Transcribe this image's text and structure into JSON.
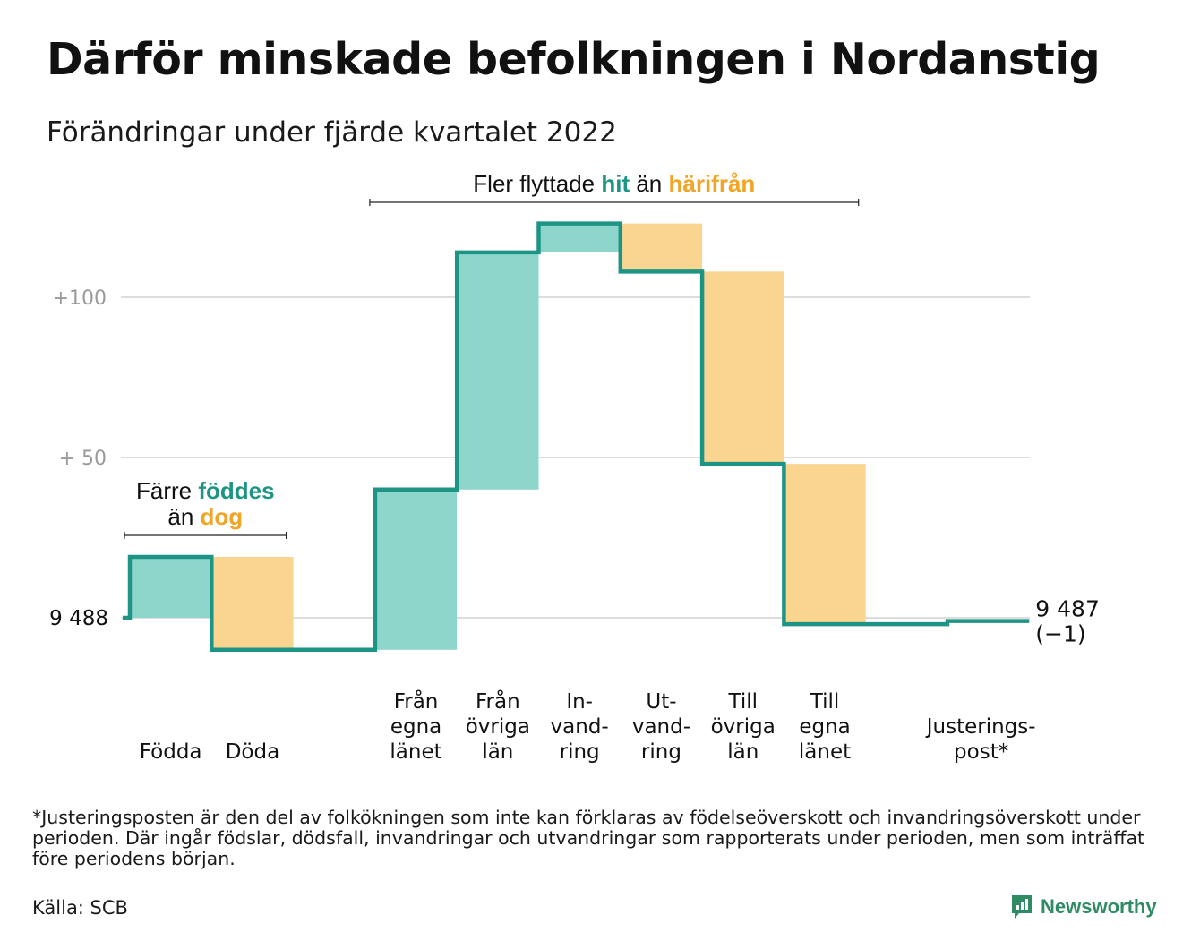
{
  "title": "Därför minskade befolkningen i Nordanstig",
  "subtitle": "Förändringar under fjärde kvartalet 2022",
  "footnote": "*Justeringsposten är den del av folkökningen som inte kan förklaras av födelseöverskott och invandringsöverskott under perioden. Där ingår födslar, dödsfall, invandringar och utvandringar som rapporterats under perioden, men som inträffat före periodens början.",
  "source": "Källa: SCB",
  "brand": "Newsworthy",
  "colors": {
    "increase": "#8ed6cc",
    "decrease": "#fad590",
    "line": "#1e9485",
    "accent_text": "#1e9485",
    "orange_text": "#f2a425",
    "grid": "#dddddd",
    "tick": "#9a9a9a"
  },
  "chart_data": {
    "type": "waterfall",
    "baseline_label": "9 488",
    "end_label": [
      "9 487",
      "(−1)"
    ],
    "y_ticks": [
      {
        "value": 100,
        "label": "+100"
      },
      {
        "value": 50,
        "label": "+ 50"
      }
    ],
    "ylim": [
      -13,
      125
    ],
    "steps": [
      {
        "category": [
          "Födda"
        ],
        "start": 0,
        "end": 19
      },
      {
        "category": [
          "Döda"
        ],
        "start": 19,
        "end": -10
      },
      {
        "category": [],
        "start": -10,
        "end": -10
      },
      {
        "category": [
          "Från",
          "egna",
          "länet"
        ],
        "start": -10,
        "end": 40
      },
      {
        "category": [
          "Från",
          "övriga",
          "län"
        ],
        "start": 40,
        "end": 114
      },
      {
        "category": [
          "In-",
          "vand-",
          "ring"
        ],
        "start": 114,
        "end": 123
      },
      {
        "category": [
          "Ut-",
          "vand-",
          "ring"
        ],
        "start": 123,
        "end": 108
      },
      {
        "category": [
          "Till",
          "övriga",
          "län"
        ],
        "start": 108,
        "end": 48
      },
      {
        "category": [
          "Till",
          "egna",
          "länet"
        ],
        "start": 48,
        "end": -2
      },
      {
        "category": [],
        "start": -2,
        "end": -2
      },
      {
        "category": [
          "Justerings-",
          "post*"
        ],
        "start": -2,
        "end": -1
      }
    ],
    "annotations": [
      {
        "lines": [
          [
            {
              "text": "Färre ",
              "style": "plain"
            },
            {
              "text": "föddes",
              "style": "teal"
            }
          ],
          [
            {
              "text": "än ",
              "style": "plain"
            },
            {
              "text": "dog",
              "style": "orange"
            }
          ]
        ],
        "from_step": 0,
        "to_step": 1
      },
      {
        "lines": [
          [
            {
              "text": "Fler flyttade ",
              "style": "plain"
            },
            {
              "text": "hit",
              "style": "teal"
            },
            {
              "text": " än ",
              "style": "plain"
            },
            {
              "text": "härifrån",
              "style": "orange"
            }
          ]
        ],
        "from_step": 3,
        "to_step": 8
      }
    ]
  }
}
